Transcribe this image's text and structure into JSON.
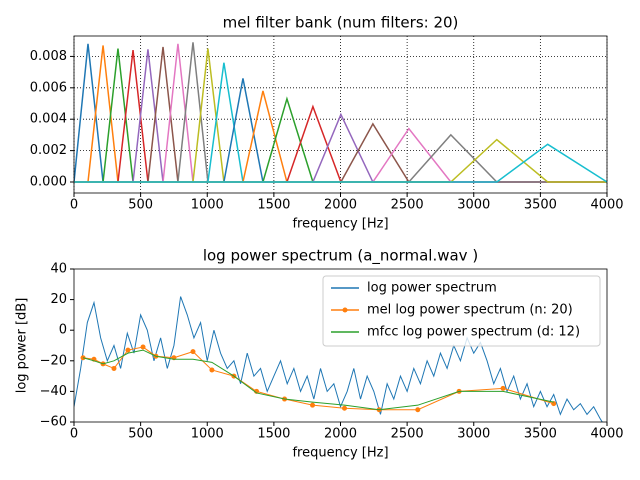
{
  "chart_data": [
    {
      "type": "line",
      "title": "mel filter bank (num filters: 20)",
      "xlabel": "frequency [Hz]",
      "xlim": [
        0,
        4000
      ],
      "xticks": [
        0,
        500,
        1000,
        1500,
        2000,
        2500,
        3000,
        3500,
        4000
      ],
      "ylim": [
        -0.0007,
        0.0093
      ],
      "yticks": [
        {
          "value": 0,
          "label": "0.000"
        },
        {
          "value": 0.002,
          "label": "0.002"
        },
        {
          "value": 0.004,
          "label": "0.004"
        },
        {
          "value": 0.006,
          "label": "0.006"
        },
        {
          "value": 0.008,
          "label": "0.008"
        }
      ],
      "grid": true,
      "series": [
        {
          "color": "#1f77b4",
          "x": [
            0,
            105,
            218,
            4000
          ],
          "values": [
            0,
            0.0088,
            0,
            0
          ]
        },
        {
          "color": "#ff7f0e",
          "x": [
            0,
            105,
            218,
            330,
            4000
          ],
          "values": [
            0,
            0,
            0.0087,
            0,
            0
          ]
        },
        {
          "color": "#2ca02c",
          "x": [
            0,
            218,
            330,
            443,
            4000
          ],
          "values": [
            0,
            0,
            0.0085,
            0,
            0
          ]
        },
        {
          "color": "#d62728",
          "x": [
            0,
            330,
            443,
            555,
            4000
          ],
          "values": [
            0,
            0,
            0.0084,
            0,
            0
          ]
        },
        {
          "color": "#9467bd",
          "x": [
            0,
            443,
            555,
            668,
            4000
          ],
          "values": [
            0,
            0,
            0.00845,
            0,
            0
          ]
        },
        {
          "color": "#8c564b",
          "x": [
            0,
            555,
            668,
            780,
            4000
          ],
          "values": [
            0,
            0,
            0.0086,
            0,
            0
          ]
        },
        {
          "color": "#e377c2",
          "x": [
            0,
            668,
            780,
            893,
            4000
          ],
          "values": [
            0,
            0,
            0.0088,
            0,
            0
          ]
        },
        {
          "color": "#7f7f7f",
          "x": [
            0,
            780,
            893,
            1005,
            4000
          ],
          "values": [
            0,
            0,
            0.0089,
            0,
            0
          ]
        },
        {
          "color": "#bcbd22",
          "x": [
            0,
            893,
            1005,
            1125,
            4000
          ],
          "values": [
            0,
            0,
            0.0085,
            0,
            0
          ]
        },
        {
          "color": "#17becf",
          "x": [
            0,
            1005,
            1125,
            1268,
            4000
          ],
          "values": [
            0,
            0,
            0.0076,
            0,
            0
          ]
        },
        {
          "color": "#1f77b4",
          "x": [
            0,
            1125,
            1268,
            1418,
            4000
          ],
          "values": [
            0,
            0,
            0.0066,
            0,
            0
          ]
        },
        {
          "color": "#ff7f0e",
          "x": [
            0,
            1268,
            1418,
            1598,
            4000
          ],
          "values": [
            0,
            0,
            0.0058,
            0,
            0
          ]
        },
        {
          "color": "#2ca02c",
          "x": [
            0,
            1418,
            1598,
            1793,
            4000
          ],
          "values": [
            0,
            0,
            0.0053,
            0,
            0
          ]
        },
        {
          "color": "#d62728",
          "x": [
            0,
            1598,
            1793,
            2003,
            4000
          ],
          "values": [
            0,
            0,
            0.0048,
            0,
            0
          ]
        },
        {
          "color": "#9467bd",
          "x": [
            0,
            1793,
            2003,
            2243,
            4000
          ],
          "values": [
            0,
            0,
            0.0043,
            0,
            0
          ]
        },
        {
          "color": "#8c564b",
          "x": [
            0,
            2003,
            2243,
            2513,
            4000
          ],
          "values": [
            0,
            0,
            0.0037,
            0,
            0
          ]
        },
        {
          "color": "#e377c2",
          "x": [
            0,
            2243,
            2513,
            2828,
            4000
          ],
          "values": [
            0,
            0,
            0.0034,
            0,
            0
          ]
        },
        {
          "color": "#7f7f7f",
          "x": [
            0,
            2513,
            2828,
            3173,
            4000
          ],
          "values": [
            0,
            0,
            0.003,
            0,
            0
          ]
        },
        {
          "color": "#bcbd22",
          "x": [
            0,
            2828,
            3173,
            3555,
            4000
          ],
          "values": [
            0,
            0,
            0.0027,
            0,
            0
          ]
        },
        {
          "color": "#17becf",
          "x": [
            0,
            3173,
            3555,
            4000
          ],
          "values": [
            0,
            0,
            0.0024,
            0
          ]
        }
      ]
    },
    {
      "type": "line",
      "title": "log power spectrum (a_normal.wav )",
      "xlabel": "frequency [Hz]",
      "ylabel": "log power [dB]",
      "xlim": [
        0,
        4000
      ],
      "xticks": [
        0,
        500,
        1000,
        1500,
        2000,
        2500,
        3000,
        3500,
        4000
      ],
      "ylim": [
        -60,
        40
      ],
      "yticks": [
        {
          "value": -60,
          "label": "−60"
        },
        {
          "value": -40,
          "label": "−40"
        },
        {
          "value": -20,
          "label": "−20"
        },
        0,
        20,
        40
      ],
      "legend": "upper right",
      "series": [
        {
          "name": "log power spectrum",
          "color": "#1f77b4",
          "x": [
            0,
            50,
            100,
            150,
            200,
            250,
            300,
            350,
            400,
            450,
            500,
            550,
            600,
            650,
            700,
            750,
            800,
            850,
            900,
            950,
            1000,
            1050,
            1100,
            1150,
            1200,
            1250,
            1300,
            1350,
            1400,
            1450,
            1500,
            1550,
            1600,
            1650,
            1700,
            1750,
            1800,
            1850,
            1900,
            1950,
            2000,
            2050,
            2100,
            2150,
            2200,
            2250,
            2300,
            2350,
            2400,
            2450,
            2500,
            2550,
            2600,
            2650,
            2700,
            2750,
            2800,
            2850,
            2900,
            2950,
            3000,
            3050,
            3100,
            3150,
            3200,
            3250,
            3300,
            3350,
            3400,
            3450,
            3500,
            3550,
            3600,
            3650,
            3700,
            3750,
            3800,
            3850,
            3900,
            3950,
            4000
          ],
          "values": [
            -50,
            -25,
            5,
            18,
            -5,
            -20,
            -10,
            -25,
            -2,
            -15,
            10,
            0,
            -20,
            -5,
            -25,
            -10,
            22,
            10,
            -5,
            5,
            -20,
            0,
            -15,
            -25,
            -20,
            -35,
            -15,
            -30,
            -25,
            -40,
            -30,
            -20,
            -35,
            -25,
            -40,
            -30,
            -45,
            -25,
            -40,
            -35,
            -50,
            -40,
            -25,
            -45,
            -30,
            -40,
            -55,
            -35,
            -45,
            -30,
            -40,
            -25,
            -35,
            -20,
            -30,
            -15,
            -25,
            -10,
            -20,
            -5,
            -15,
            -8,
            -20,
            -35,
            -25,
            -40,
            -30,
            -45,
            -35,
            -50,
            -40,
            -50,
            -42,
            -55,
            -45,
            -52,
            -48,
            -55,
            -50,
            -58,
            -65
          ]
        },
        {
          "name": "mel log power spectrum (n: 20)",
          "color": "#ff7f0e",
          "marker": "o",
          "x": [
            68,
            150,
            218,
            300,
            405,
            518,
            615,
            750,
            893,
            1035,
            1200,
            1370,
            1580,
            1790,
            2030,
            2290,
            2580,
            2890,
            3220,
            3600
          ],
          "values": [
            -18,
            -19,
            -22,
            -25,
            -13,
            -11,
            -17,
            -18,
            -14,
            -26,
            -30,
            -40,
            -45,
            -49,
            -51,
            -52,
            -52,
            -40,
            -38,
            -48
          ]
        },
        {
          "name": "mfcc log power spectrum (d: 12)",
          "color": "#2ca02c",
          "x": [
            68,
            150,
            218,
            300,
            405,
            518,
            615,
            750,
            893,
            1035,
            1200,
            1370,
            1580,
            1790,
            2030,
            2290,
            2580,
            2890,
            3220,
            3600
          ],
          "values": [
            -18,
            -20,
            -22,
            -20,
            -15,
            -13,
            -17,
            -19,
            -19,
            -21,
            -30,
            -41,
            -45,
            -47,
            -49,
            -52,
            -49,
            -40,
            -40,
            -47
          ]
        }
      ]
    }
  ]
}
